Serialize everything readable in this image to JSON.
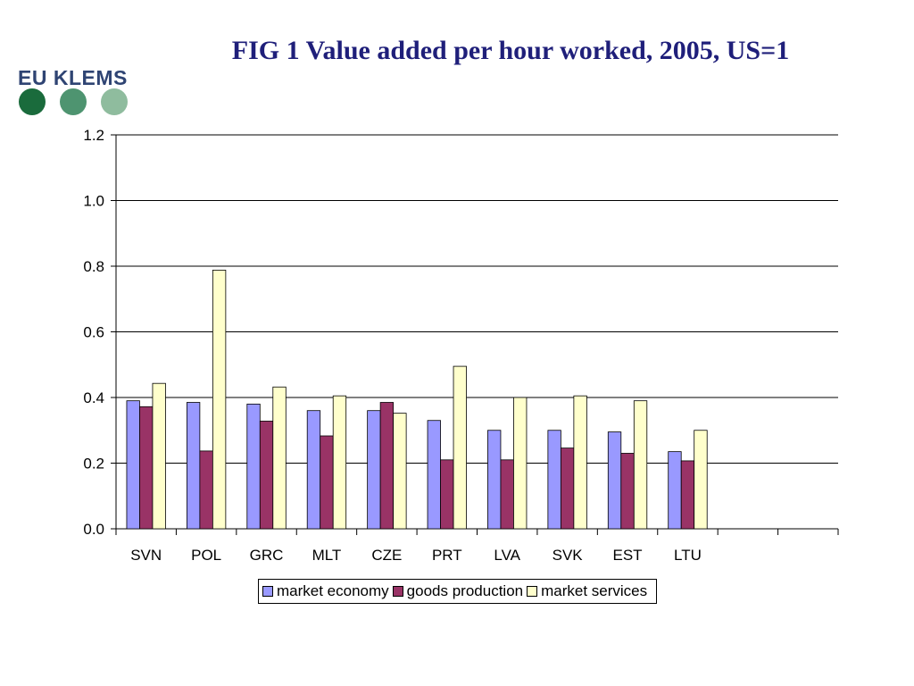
{
  "header": {
    "title": "FIG 1 Value added per hour worked, 2005, US=1",
    "logo_text": "EU KLEMS",
    "logo_dot_colors": [
      "#1a6b3c",
      "#4e9470",
      "#8fbc9e"
    ]
  },
  "chart_data": {
    "type": "bar",
    "title": "FIG 1 Value added per hour worked, 2005, US=1",
    "xlabel": "",
    "ylabel": "",
    "ylim": [
      0,
      1.2
    ],
    "yticks": [
      "0.0",
      "0.2",
      "0.4",
      "0.6",
      "0.8",
      "1.0",
      "1.2"
    ],
    "grid": true,
    "legend_position": "bottom",
    "categories": [
      "SVN",
      "POL",
      "GRC",
      "MLT",
      "CZE",
      "PRT",
      "LVA",
      "SVK",
      "EST",
      "LTU",
      "",
      ""
    ],
    "series": [
      {
        "name": "market economy",
        "color": "#9999ff",
        "values": [
          0.39,
          0.385,
          0.38,
          0.36,
          0.36,
          0.33,
          0.3,
          0.3,
          0.295,
          0.235,
          null,
          null
        ]
      },
      {
        "name": "goods production",
        "color": "#993366",
        "values": [
          0.372,
          0.237,
          0.328,
          0.283,
          0.385,
          0.21,
          0.21,
          0.246,
          0.23,
          0.207,
          null,
          null
        ]
      },
      {
        "name": "market services",
        "color": "#ffffcc",
        "values": [
          0.443,
          0.788,
          0.432,
          0.405,
          0.352,
          0.495,
          0.4,
          0.405,
          0.39,
          0.3,
          null,
          null
        ]
      }
    ]
  }
}
